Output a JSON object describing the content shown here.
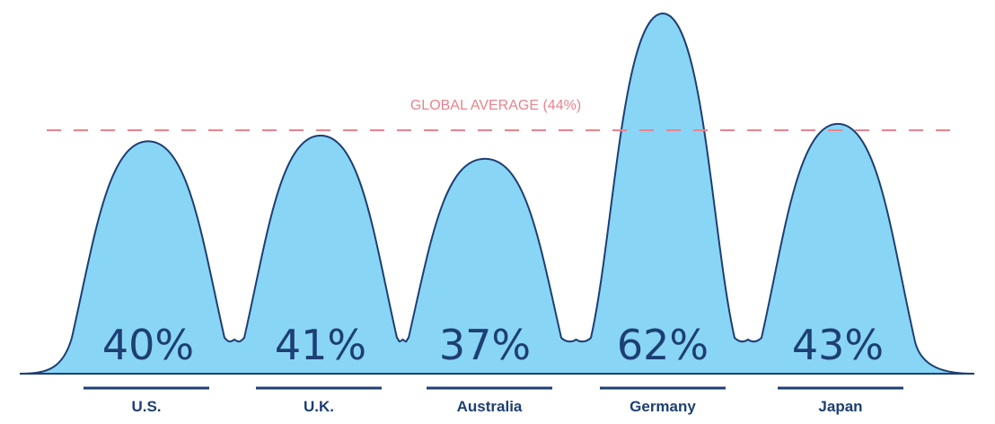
{
  "chart_data": {
    "type": "area",
    "categories": [
      "U.S.",
      "U.K.",
      "Australia",
      "Germany",
      "Japan"
    ],
    "values": [
      40,
      41,
      37,
      62,
      43
    ],
    "value_labels": [
      "40%",
      "41%",
      "37%",
      "62%",
      "43%"
    ],
    "reference_line": {
      "label": "GLOBAL AVERAGE (44%)",
      "value": 44
    },
    "ylim": [
      0,
      62
    ],
    "grid": false,
    "legend": "none",
    "colors": {
      "fill": "#89d5f5",
      "stroke": "#1d3f73",
      "average_line": "#e8838e",
      "text": "#1d3f73"
    }
  }
}
